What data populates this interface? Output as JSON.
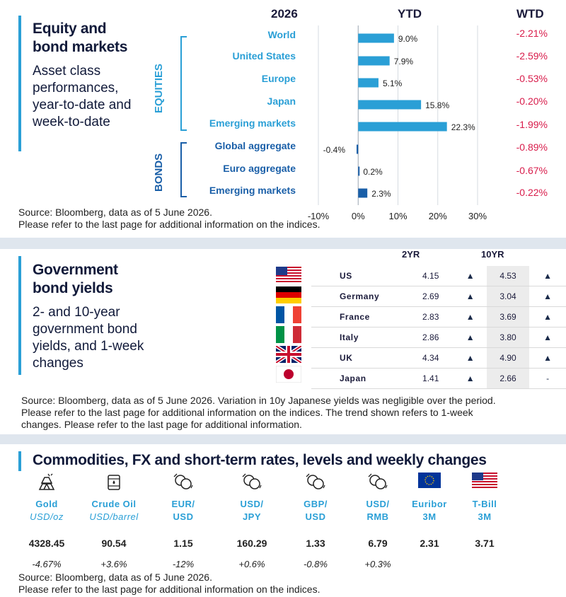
{
  "equity": {
    "title_lines": [
      "Equity and",
      "bond markets"
    ],
    "subtitle_lines": [
      "Asset class",
      "performances,",
      "year-to-date and",
      "week-to-date"
    ],
    "year": "2026",
    "ytd_header": "YTD",
    "wtd_header": "WTD",
    "group_equities": "EQUITIES",
    "group_bonds": "BONDS",
    "source_lines": [
      "Source: Bloomberg, data as of 5 June 2026.",
      "Please refer to the last page for additional information on the indices."
    ],
    "colors": {
      "equity_bar": "#2a9fd6",
      "bond_bar": "#1a5fa8",
      "negative": "#d81b4a"
    }
  },
  "chart_data": {
    "type": "bar",
    "orientation": "horizontal",
    "categories": [
      "World",
      "United States",
      "Europe",
      "Japan",
      "Emerging markets",
      "Global aggregate",
      "Euro aggregate",
      "Emerging markets"
    ],
    "groups": [
      "EQUITIES",
      "EQUITIES",
      "EQUITIES",
      "EQUITIES",
      "EQUITIES",
      "BONDS",
      "BONDS",
      "BONDS"
    ],
    "values": [
      9.0,
      7.9,
      5.1,
      15.8,
      22.3,
      -0.4,
      0.2,
      2.3
    ],
    "value_labels": [
      "9.0%",
      "7.9%",
      "5.1%",
      "15.8%",
      "22.3%",
      "-0.4%",
      "0.2%",
      "2.3%"
    ],
    "wtd_labels": [
      "-2.21%",
      "-2.59%",
      "-0.53%",
      "-0.20%",
      "-1.99%",
      "-0.89%",
      "-0.67%",
      "-0.22%"
    ],
    "xlim": [
      -10,
      30
    ],
    "xticks": [
      -10,
      0,
      10,
      20,
      30
    ],
    "xtick_labels": [
      "-10%",
      "0%",
      "10%",
      "20%",
      "30%"
    ],
    "grid": true
  },
  "yields": {
    "title_lines": [
      "Government",
      "bond yields"
    ],
    "subtitle_lines": [
      "2- and 10-year",
      "government bond",
      "yields, and 1-week",
      "changes"
    ],
    "header_2yr": "2YR",
    "header_10yr": "10YR",
    "rows": [
      {
        "country": "US",
        "y2": "4.15",
        "t2": "▲",
        "y10": "4.53",
        "t10": "▲",
        "flag": "us-flag"
      },
      {
        "country": "Germany",
        "y2": "2.69",
        "t2": "▲",
        "y10": "3.04",
        "t10": "▲",
        "flag": "germany-flag"
      },
      {
        "country": "France",
        "y2": "2.83",
        "t2": "▲",
        "y10": "3.69",
        "t10": "▲",
        "flag": "france-flag"
      },
      {
        "country": "Italy",
        "y2": "2.86",
        "t2": "▲",
        "y10": "3.80",
        "t10": "▲",
        "flag": "italy-flag"
      },
      {
        "country": "UK",
        "y2": "4.34",
        "t2": "▲",
        "y10": "4.90",
        "t10": "▲",
        "flag": "uk-flag"
      },
      {
        "country": "Japan",
        "y2": "1.41",
        "t2": "▲",
        "y10": "2.66",
        "t10": "-",
        "flag": "japan-flag"
      }
    ],
    "source_lines": [
      "Source: Bloomberg, data as of 5 June 2026. Variation in 10y Japanese yields was negligible over the period.",
      "Please refer to the last page for additional information on the indices. The trend shown refers to 1-week",
      "changes. Please refer to the last page for additional information."
    ]
  },
  "commodities": {
    "title": "Commodities, FX and short-term rates, levels and weekly changes",
    "items": [
      {
        "name1": "Gold",
        "name2": "USD/oz",
        "value": "4328.45",
        "change": "-4.67%",
        "icon": "gold-bars-icon"
      },
      {
        "name1": "Crude Oil",
        "name2": "USD/barrel",
        "value": "90.54",
        "change": "+3.6%",
        "icon": "oil-barrel-icon"
      },
      {
        "name1": "EUR/",
        "name2": "USD",
        "value": "1.15",
        "change": "-12%",
        "icon": "currency-exchange-icon"
      },
      {
        "name1": "USD/",
        "name2": "JPY",
        "value": "160.29",
        "change": "+0.6%",
        "icon": "currency-exchange-icon"
      },
      {
        "name1": "GBP/",
        "name2": "USD",
        "value": "1.33",
        "change": "-0.8%",
        "icon": "currency-exchange-icon"
      },
      {
        "name1": "USD/",
        "name2": "RMB",
        "value": "6.79",
        "change": "+0.3%",
        "icon": "currency-exchange-icon"
      },
      {
        "name1": "Euribor",
        "name2": "3M",
        "value": "2.31",
        "change": "",
        "icon": "eu-flag"
      },
      {
        "name1": "T-Bill",
        "name2": "3M",
        "value": "3.71",
        "change": "",
        "icon": "us-flag"
      }
    ],
    "source_lines": [
      "Source: Bloomberg, data as of 5 June 2026.",
      "Please refer to the last page for additional information on the indices."
    ]
  }
}
